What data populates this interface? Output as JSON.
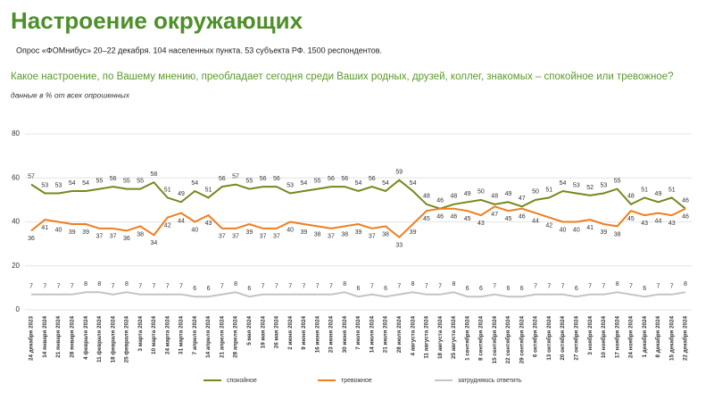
{
  "chart_data": {
    "type": "line",
    "title": "Настроение окружающих",
    "subtitle": "Опрос «ФОМнибус» 20–22 декабря. 104 населенных пункта. 53 субъекта РФ. 1500 респондентов.",
    "question": "Какое настроение, по Вашему мнению, преобладает сегодня среди Ваших родных, друзей, коллег, знакомых – спокойное или тревожное?",
    "note": "данные в % от всех опрошенных",
    "categories": [
      "24 декабря 2023",
      "14 января 2024",
      "21 января 2024",
      "28 января 2024",
      "4 февраля 2024",
      "11 февраля 2024",
      "18 февраля 2024",
      "25 февраля 2024",
      "3 марта 2024",
      "10 марта 2024",
      "24 марта 2024",
      "31 марта 2024",
      "7 апреля 2024",
      "14 апреля 2024",
      "21 апреля 2024",
      "28 апреля 2024",
      "5 мая 2024",
      "19 мая 2024",
      "26 мая 2024",
      "2 июня 2024",
      "9 июня 2024",
      "16 июня 2024",
      "23 июня 2024",
      "30 июня 2024",
      "7 июля 2024",
      "14 июля 2024",
      "21 июля 2024",
      "28 июля 2024",
      "4 августа 2024",
      "11 августа 2024",
      "18 августа 2024",
      "25 августа 2024",
      "1 сентября 2024",
      "8 сентября 2024",
      "15 сентября 2024",
      "22 сентября 2024",
      "29 сентября 2024",
      "6 октября 2024",
      "13 октября 2024",
      "20 октября 2024",
      "27 октября 2024",
      "3 ноября 2024",
      "10 ноября 2024",
      "17 ноября 2024",
      "24 ноября 2024",
      "1 декабря 2024",
      "8 декабря 2024",
      "15 декабря 2024",
      "22 декабря 2024"
    ],
    "series": [
      {
        "name": "спокойное",
        "color": "#738a1c",
        "values": [
          57,
          53,
          53,
          54,
          54,
          55,
          56,
          55,
          55,
          58,
          51,
          49,
          54,
          51,
          56,
          57,
          55,
          56,
          56,
          53,
          54,
          55,
          56,
          56,
          54,
          56,
          54,
          59,
          54,
          48,
          46,
          48,
          49,
          50,
          48,
          49,
          47,
          50,
          51,
          54,
          53,
          52,
          53,
          55,
          48,
          51,
          49,
          51,
          46
        ]
      },
      {
        "name": "тревожное",
        "color": "#f07d1e",
        "values": [
          36,
          41,
          40,
          39,
          39,
          37,
          37,
          36,
          38,
          34,
          42,
          44,
          40,
          43,
          37,
          37,
          39,
          37,
          37,
          40,
          39,
          38,
          37,
          38,
          39,
          37,
          38,
          33,
          39,
          45,
          46,
          46,
          45,
          43,
          47,
          45,
          46,
          44,
          42,
          40,
          40,
          41,
          39,
          38,
          45,
          43,
          44,
          43,
          46
        ]
      },
      {
        "name": "затрудняюсь ответить",
        "color": "#c4c4c4",
        "values": [
          7,
          7,
          7,
          7,
          8,
          8,
          7,
          8,
          7,
          7,
          7,
          7,
          6,
          6,
          7,
          8,
          6,
          7,
          7,
          7,
          7,
          7,
          7,
          8,
          6,
          7,
          6,
          7,
          8,
          7,
          7,
          8,
          6,
          6,
          7,
          6,
          6,
          7,
          7,
          7,
          6,
          7,
          7,
          8,
          7,
          6,
          7,
          7,
          8
        ]
      }
    ],
    "ylim": [
      0,
      80
    ],
    "yticks": [
      0,
      20,
      40,
      60,
      80
    ],
    "grid": true
  }
}
